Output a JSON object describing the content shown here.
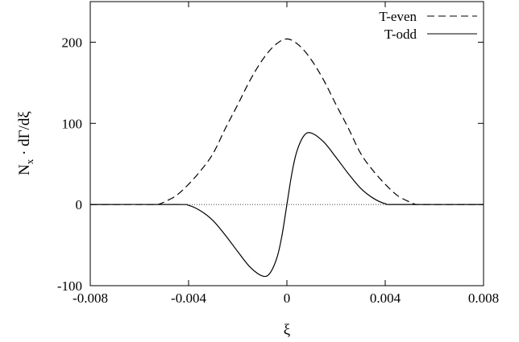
{
  "chart_data": {
    "type": "line",
    "title": "",
    "xlabel": "ξ",
    "ylabel": "N",
    "ylabel_sub": "x",
    "ylabel_rest": " · dΓ/dξ",
    "xlim": [
      -0.008,
      0.008
    ],
    "ylim": [
      -100,
      250
    ],
    "xticks": [
      -0.008,
      -0.004,
      0,
      0.004,
      0.008
    ],
    "xtick_labels": [
      "-0.008",
      "-0.004",
      "0",
      "0.004",
      "0.008"
    ],
    "yticks": [
      -100,
      0,
      100,
      200
    ],
    "ytick_labels": [
      "-100",
      "0",
      "100",
      "200"
    ],
    "grid": false,
    "legend_position": "top-right",
    "zero_line": true,
    "series": [
      {
        "name": "T-even",
        "style": "dashed",
        "color": "#000000",
        "x": [
          -0.008,
          -0.0055,
          -0.0052,
          -0.005,
          -0.0045,
          -0.004,
          -0.0035,
          -0.003,
          -0.0025,
          -0.002,
          -0.0015,
          -0.001,
          -0.0005,
          0,
          0.0005,
          0.001,
          0.0015,
          0.002,
          0.0025,
          0.003,
          0.0035,
          0.004,
          0.0045,
          0.005,
          0.0052,
          0.0055,
          0.008
        ],
        "y": [
          0,
          0,
          0.5,
          3,
          11,
          25,
          42,
          63,
          94,
          123,
          153,
          178,
          196,
          204,
          196,
          178,
          153,
          123,
          94,
          63,
          42,
          25,
          11,
          3,
          0.5,
          0,
          0
        ]
      },
      {
        "name": "T-odd",
        "style": "solid",
        "color": "#000000",
        "x": [
          -0.008,
          -0.0045,
          -0.004,
          -0.0035,
          -0.003,
          -0.0025,
          -0.002,
          -0.0015,
          -0.001,
          -0.0007,
          -0.0004,
          -0.0002,
          0,
          0.0002,
          0.0004,
          0.0007,
          0.001,
          0.0015,
          0.002,
          0.0025,
          0.003,
          0.0035,
          0.004,
          0.0045,
          0.008
        ],
        "y": [
          0,
          0,
          -1,
          -8,
          -20,
          -38,
          -58,
          -77,
          -88,
          -85,
          -65,
          -38,
          0,
          38,
          65,
          85,
          88,
          77,
          58,
          38,
          20,
          8,
          1,
          0,
          0
        ]
      }
    ]
  }
}
